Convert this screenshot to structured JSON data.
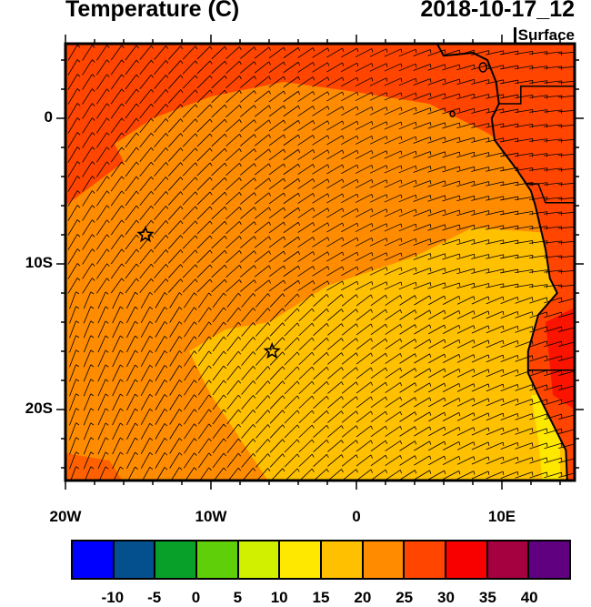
{
  "title": "Temperature (C)",
  "datetime": "2018-10-17_12",
  "level": "Surface",
  "map": {
    "lon_range": [
      -20,
      15
    ],
    "lat_range": [
      -25,
      5
    ],
    "lon_ticks": [
      {
        "v": -20,
        "label": "20W"
      },
      {
        "v": -10,
        "label": "10W"
      },
      {
        "v": 0,
        "label": "0"
      },
      {
        "v": 10,
        "label": "10E"
      }
    ],
    "lat_ticks": [
      {
        "v": 0,
        "label": "0"
      },
      {
        "v": -10,
        "label": "10S"
      },
      {
        "v": -20,
        "label": "20S"
      }
    ],
    "markers": [
      {
        "type": "star",
        "lon": -14.5,
        "lat": -8
      },
      {
        "type": "star",
        "lon": -5.8,
        "lat": -16
      }
    ],
    "field_colors": {
      "ocean_main": "#FF8C00",
      "north": "#FF4500",
      "southeast": "#FFC000",
      "coastal_south": "#FFE800",
      "land": "#FF4500"
    },
    "wind": "southeasterly trade winds"
  },
  "colorbar": {
    "colors": [
      "#0000FF",
      "#04508F",
      "#08A028",
      "#5ECF08",
      "#D0F000",
      "#FFE800",
      "#FFC000",
      "#FF8C00",
      "#FF4500",
      "#F80000",
      "#A50040",
      "#600080"
    ],
    "labels": [
      "-10",
      "-5",
      "0",
      "5",
      "10",
      "15",
      "20",
      "25",
      "30",
      "35",
      "40"
    ]
  }
}
